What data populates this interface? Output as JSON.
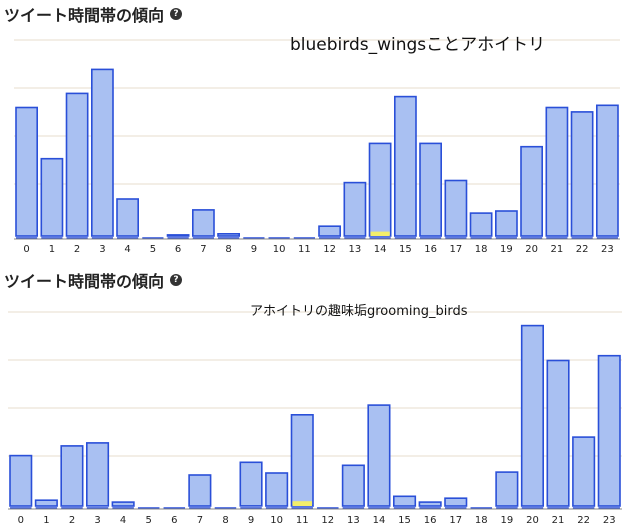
{
  "charts": [
    {
      "heading": "ツイート時間帯の傾向",
      "title": "bluebirds_wingsことアホイトリ"
    },
    {
      "heading": "ツイート時間帯の傾向",
      "title": "アホイトリの趣味垢grooming_birds"
    }
  ],
  "colors": {
    "bar_fill": "#a9c0f2",
    "bar_stroke": "#2a4fd8",
    "highlight": "#f3ee6a",
    "grid": "#e7dccd",
    "axis": "#888888"
  },
  "chart_data": [
    {
      "type": "bar",
      "title": "bluebirds_wingsことアホイトリ",
      "categories": [
        "0",
        "1",
        "2",
        "3",
        "4",
        "5",
        "6",
        "7",
        "8",
        "9",
        "10",
        "11",
        "12",
        "13",
        "14",
        "15",
        "16",
        "17",
        "18",
        "19",
        "20",
        "21",
        "22",
        "23"
      ],
      "values": [
        118,
        71,
        131,
        153,
        34,
        0,
        1,
        24,
        2,
        0,
        0,
        0,
        9,
        49,
        85,
        128,
        85,
        51,
        21,
        23,
        82,
        118,
        114,
        120
      ],
      "highlighted_bars": [
        {
          "category": "14",
          "value": 4
        }
      ],
      "ylim": [
        0,
        180
      ],
      "grid": true
    },
    {
      "type": "bar",
      "title": "アホイトリの趣味垢grooming_birds",
      "categories": [
        "0",
        "1",
        "2",
        "3",
        "4",
        "5",
        "6",
        "7",
        "8",
        "9",
        "10",
        "11",
        "12",
        "13",
        "14",
        "15",
        "16",
        "17",
        "18",
        "19",
        "20",
        "21",
        "22",
        "23"
      ],
      "values": [
        52,
        6,
        62,
        65,
        4,
        0,
        0,
        32,
        0,
        45,
        34,
        94,
        0,
        42,
        104,
        10,
        4,
        8,
        0,
        35,
        186,
        150,
        71,
        155
      ],
      "highlighted_bars": [
        {
          "category": "11",
          "value": 5
        }
      ],
      "ylim": [
        0,
        200
      ],
      "grid": true
    }
  ]
}
